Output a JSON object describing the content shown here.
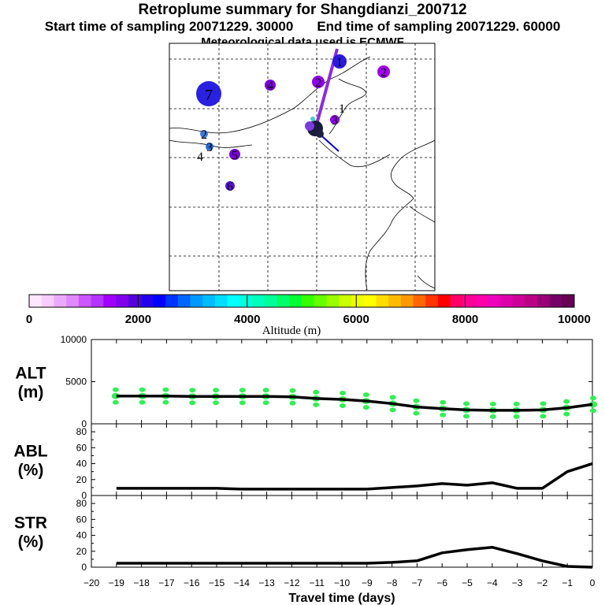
{
  "header": {
    "title": "Retroplume summary for Shangdianzi_200712",
    "start_time_label": "Start time of sampling 20071229. 30000",
    "end_time_label": "End time of sampling 20071229. 60000",
    "met_label": "Meteorological data used is ECMWF"
  },
  "map": {
    "clusters": [
      {
        "label": "1",
        "color": "#2a1adf"
      },
      {
        "label": "1",
        "color": "#1b1b40"
      },
      {
        "label": "2",
        "color": "#8f00e8"
      },
      {
        "label": "2",
        "color": "#a100ec"
      },
      {
        "label": "2",
        "color": "#3a7be0"
      },
      {
        "label": "3",
        "color": "#8f00e8"
      },
      {
        "label": "3",
        "color": "#2a6bd0"
      },
      {
        "label": "4",
        "color": "#7a00dd"
      },
      {
        "label": "4",
        "color": "#1c1c60"
      },
      {
        "label": "5",
        "color": "#7a00dd"
      },
      {
        "label": "6",
        "color": "#5a10e0"
      },
      {
        "label": "7",
        "color": "#2a20e0"
      }
    ]
  },
  "colorbar": {
    "title": "Altitude (m)",
    "tick_labels": [
      "0",
      "2000",
      "4000",
      "6000",
      "8000",
      "10000"
    ],
    "colors": [
      "#ffe6ff",
      "#f7ccff",
      "#ecaaff",
      "#df88ff",
      "#cc55ff",
      "#b433ff",
      "#a000ff",
      "#8000ee",
      "#5500dd",
      "#2200ee",
      "#0000ff",
      "#0033ff",
      "#0066ff",
      "#0099ff",
      "#00bbff",
      "#00ddff",
      "#00ffff",
      "#00ffdd",
      "#00ffbb",
      "#00ff99",
      "#00ff66",
      "#00ff33",
      "#33ff00",
      "#66ff00",
      "#99ff00",
      "#ccff00",
      "#eeff00",
      "#ffff00",
      "#ffdd00",
      "#ffbb00",
      "#ff9900",
      "#ff6600",
      "#ff3300",
      "#ff0000",
      "#ff0066",
      "#ff0099",
      "#ff00aa",
      "#ee00bb",
      "#dd00aa",
      "#cc0099",
      "#bb0088",
      "#990077",
      "#770066",
      "#660055"
    ]
  },
  "chart_data": [
    {
      "type": "line",
      "name": "ALT",
      "ylabel": "ALT\n(m)",
      "ylabel_line1": "ALT",
      "ylabel_line2": "(m)",
      "ylim": [
        0,
        10000
      ],
      "ytick_labels": [
        "10000",
        "5000",
        "0"
      ],
      "x": [
        -19,
        -18,
        -17,
        -16,
        -15,
        -14,
        -13,
        -12,
        -11,
        -10,
        -9,
        -8,
        -7,
        -6,
        -5,
        -4,
        -3,
        -2,
        -1,
        0
      ],
      "values": [
        3300,
        3300,
        3300,
        3250,
        3250,
        3250,
        3250,
        3200,
        3000,
        2900,
        2700,
        2400,
        2000,
        1800,
        1650,
        1600,
        1600,
        1650,
        1900,
        2300
      ],
      "scatter_color": "#33ee55"
    },
    {
      "type": "line",
      "name": "ABL",
      "ylabel_line1": "ABL",
      "ylabel_line2": "(%)",
      "ylim": [
        0,
        90
      ],
      "ytick_labels": [
        "80",
        "60",
        "40",
        "20",
        "0"
      ],
      "x": [
        -19,
        -18,
        -17,
        -16,
        -15,
        -14,
        -13,
        -12,
        -11,
        -10,
        -9,
        -8,
        -7,
        -6,
        -5,
        -4,
        -3,
        -2,
        -1,
        0
      ],
      "values": [
        9,
        9,
        9,
        9,
        9,
        8,
        8,
        8,
        8,
        8,
        8,
        10,
        12,
        15,
        13,
        16,
        9,
        9,
        30,
        40
      ]
    },
    {
      "type": "line",
      "name": "STR",
      "ylabel_line1": "STR",
      "ylabel_line2": "(%)",
      "ylim": [
        0,
        90
      ],
      "ytick_labels": [
        "80",
        "60",
        "40",
        "20",
        "0"
      ],
      "xlabel": "Travel time (days)",
      "xtick_labels": [
        "−20",
        "−19",
        "−18",
        "−17",
        "−16",
        "−15",
        "−14",
        "−13",
        "−12",
        "−11",
        "−10",
        "−9",
        "−8",
        "−7",
        "−6",
        "−5",
        "−4",
        "−3",
        "−2",
        "−1",
        "0"
      ],
      "x": [
        -19,
        -18,
        -17,
        -16,
        -15,
        -14,
        -13,
        -12,
        -11,
        -10,
        -9,
        -8,
        -7,
        -6,
        -5,
        -4,
        -3,
        -2,
        -1,
        0
      ],
      "values": [
        5,
        5,
        5,
        5,
        5,
        5,
        5,
        5,
        5,
        5,
        5,
        6,
        8,
        18,
        22,
        25,
        17,
        8,
        1,
        0
      ]
    }
  ]
}
